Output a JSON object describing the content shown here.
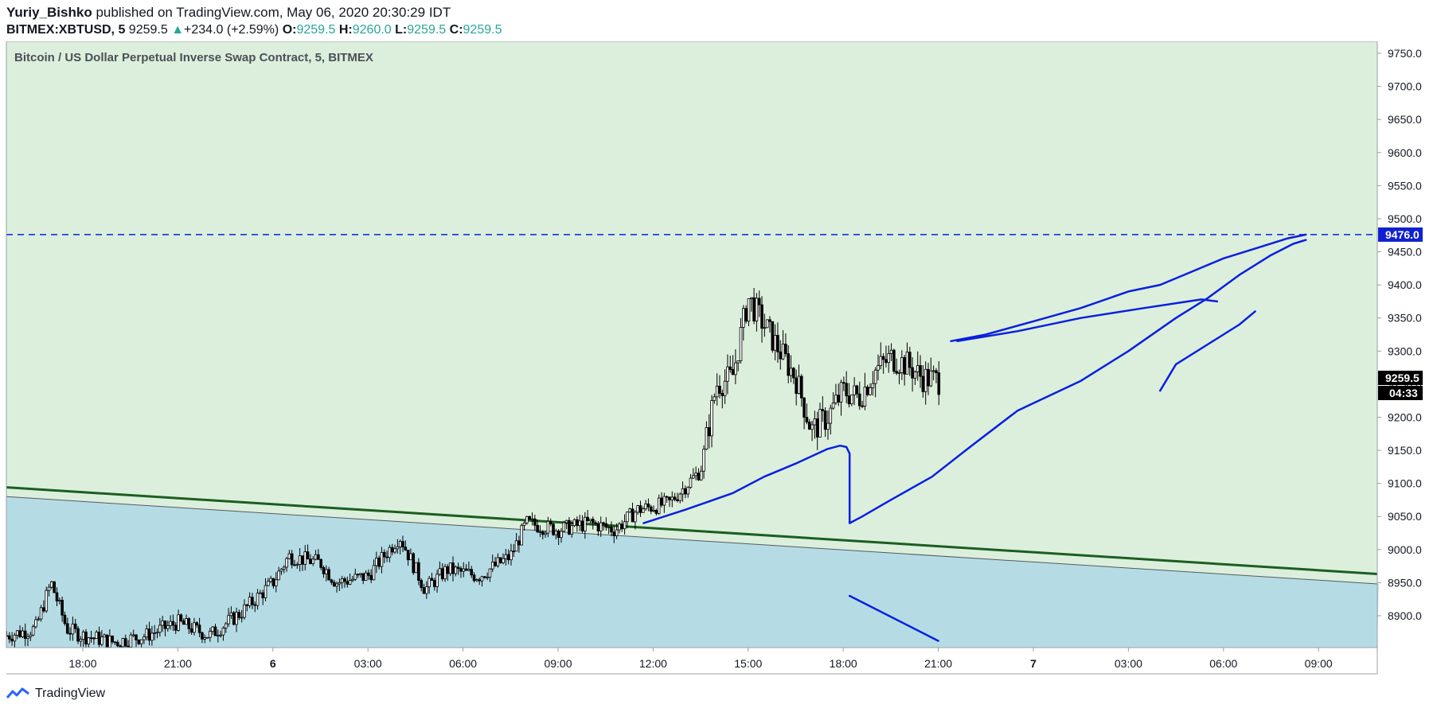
{
  "header": {
    "author": "Yuriy_Bishko",
    "published_text": "published on TradingView.com, May 06, 2020 20:30:29 IDT",
    "symbol": "BITMEX:XBTUSD, 5",
    "last": "9259.5",
    "change": "+234.0 (+2.59%)",
    "o_label": "O:",
    "o": "9259.5",
    "h_label": "H:",
    "h": "9260.0",
    "l_label": "L:",
    "l": "9259.5",
    "c_label": "C:",
    "c": "9259.5"
  },
  "footer": {
    "brand": "TradingView"
  },
  "colors": {
    "upper_zone": "#dcefdc",
    "lower_zone": "#b5dce5",
    "trendline": "#1b5e20",
    "drawing": "#0a1fe0",
    "candle": "#000000",
    "price_tag": "#1020d0"
  },
  "chart_data": {
    "type": "candlestick",
    "title": "Bitcoin / US Dollar Perpetual Inverse Swap Contract, 5, BITMEX",
    "ylim": [
      8860,
      9800
    ],
    "y_ticks": [
      "9750.0",
      "9700.0",
      "9650.0",
      "9600.0",
      "9550.0",
      "9500.0",
      "9450.0",
      "9400.0",
      "9350.0",
      "9300.0",
      "9250.0",
      "9200.0",
      "9150.0",
      "9100.0",
      "9050.0",
      "9000.0",
      "8950.0",
      "8900.0"
    ],
    "y_tick_values": [
      9750,
      9700,
      9650,
      9600,
      9550,
      9500,
      9450,
      9400,
      9350,
      9300,
      9250,
      9200,
      9150,
      9100,
      9050,
      9000,
      8950,
      8900
    ],
    "x_ticks": [
      "18:00",
      "21:00",
      "6",
      "03:00",
      "06:00",
      "09:00",
      "12:00",
      "15:00",
      "18:00",
      "21:00",
      "7",
      "03:00",
      "06:00",
      "09:00"
    ],
    "x_tick_hours": [
      18,
      21,
      24,
      27,
      30,
      33,
      36,
      39,
      42,
      45,
      48,
      51,
      54,
      57
    ],
    "x_range_hours": [
      15.6,
      58.9
    ],
    "price_path": [
      [
        15.6,
        8870
      ],
      [
        16.5,
        8880
      ],
      [
        17.0,
        8950
      ],
      [
        17.5,
        8880
      ],
      [
        18.0,
        8870
      ],
      [
        19.0,
        8860
      ],
      [
        20.0,
        8870
      ],
      [
        21.0,
        8890
      ],
      [
        22.0,
        8870
      ],
      [
        23.0,
        8905
      ],
      [
        24.0,
        8950
      ],
      [
        24.5,
        8990
      ],
      [
        25.5,
        8980
      ],
      [
        26.0,
        8950
      ],
      [
        27.0,
        8960
      ],
      [
        28.0,
        9020
      ],
      [
        28.8,
        8940
      ],
      [
        29.5,
        8970
      ],
      [
        30.5,
        8960
      ],
      [
        31.5,
        8990
      ],
      [
        32.0,
        9040
      ],
      [
        33.0,
        9030
      ],
      [
        34.0,
        9040
      ],
      [
        34.8,
        9030
      ],
      [
        35.5,
        9060
      ],
      [
        36.5,
        9070
      ],
      [
        37.5,
        9120
      ],
      [
        38.0,
        9250
      ],
      [
        38.5,
        9260
      ],
      [
        39.0,
        9380
      ],
      [
        39.5,
        9340
      ],
      [
        40.0,
        9300
      ],
      [
        40.5,
        9260
      ],
      [
        41.0,
        9180
      ],
      [
        41.5,
        9200
      ],
      [
        42.0,
        9240
      ],
      [
        42.5,
        9230
      ],
      [
        43.0,
        9270
      ],
      [
        43.5,
        9290
      ],
      [
        44.0,
        9280
      ],
      [
        44.5,
        9260
      ],
      [
        45.1,
        9255
      ]
    ],
    "horizontal_level": {
      "value": 9476.0,
      "label": "9476.0",
      "style": "dashed"
    },
    "trendline": {
      "start": [
        15.6,
        9094
      ],
      "end": [
        58.9,
        8963
      ]
    },
    "zone_boundary": {
      "start": [
        15.6,
        9080
      ],
      "end": [
        58.9,
        8948
      ]
    },
    "last_price_label": "9259.5",
    "countdown_label": "04:33",
    "last_price_value": 9259.5
  }
}
